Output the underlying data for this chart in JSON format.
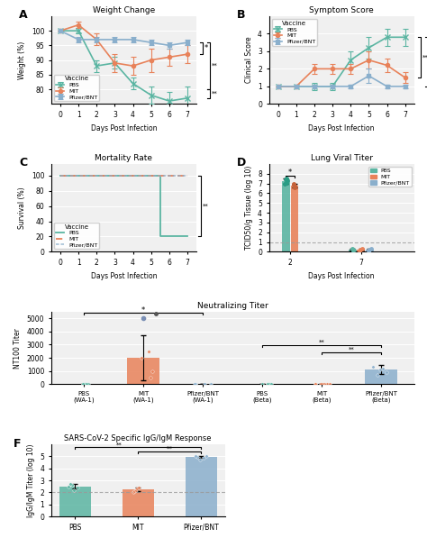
{
  "panel_A": {
    "title": "Weight Change",
    "xlabel": "Days Post Infection",
    "ylabel": "Weight (%)",
    "days": [
      0,
      1,
      2,
      3,
      4,
      5,
      6,
      7
    ],
    "PBS_mean": [
      100,
      100,
      88,
      89,
      82,
      78,
      76,
      77
    ],
    "PBS_err": [
      0,
      1,
      2,
      2,
      2,
      3,
      3,
      4
    ],
    "MIT_mean": [
      100,
      102,
      97,
      89,
      88,
      90,
      91,
      92
    ],
    "MIT_err": [
      0,
      1,
      2,
      3,
      3,
      4,
      3,
      3
    ],
    "Pfizer_mean": [
      100,
      97,
      97,
      97,
      97,
      96,
      95,
      96
    ],
    "Pfizer_err": [
      0,
      1,
      1,
      1,
      1,
      1,
      1,
      1
    ],
    "ylim": [
      75,
      105
    ],
    "yticks": [
      80,
      85,
      90,
      95,
      100
    ]
  },
  "panel_B": {
    "title": "Symptom Score",
    "xlabel": "Days Post Infection",
    "ylabel": "Clinical Score",
    "days": [
      0,
      1,
      2,
      3,
      4,
      5,
      6,
      7
    ],
    "PBS_mean": [
      1,
      1,
      1,
      1,
      2.5,
      3.2,
      3.8,
      3.8
    ],
    "PBS_err": [
      0,
      0,
      0.2,
      0.2,
      0.5,
      0.6,
      0.5,
      0.5
    ],
    "MIT_mean": [
      1,
      1,
      2.0,
      2.0,
      2.0,
      2.5,
      2.2,
      1.5
    ],
    "MIT_err": [
      0,
      0,
      0.3,
      0.3,
      0.3,
      0.5,
      0.4,
      0.3
    ],
    "Pfizer_mean": [
      1,
      1,
      1,
      1,
      1,
      1.6,
      1,
      1
    ],
    "Pfizer_err": [
      0,
      0,
      0,
      0,
      0.1,
      0.4,
      0.1,
      0.1
    ],
    "ylim": [
      0,
      5
    ],
    "yticks": [
      0,
      1,
      2,
      3,
      4
    ]
  },
  "panel_C": {
    "title": "Mortality Rate",
    "xlabel": "Days Post Infection",
    "ylabel": "Survival (%)",
    "ylim": [
      0,
      115
    ],
    "yticks": [
      0,
      20,
      40,
      60,
      80,
      100
    ]
  },
  "panel_D": {
    "title": "Lung Viral Titer",
    "xlabel": "Days Post Infection",
    "ylabel": "TCID50/g Tissue (log 10)",
    "day2_PBS": 7.25,
    "day2_PBS_err": 0.25,
    "day2_MIT": 6.8,
    "day2_MIT_err": 0.2,
    "day7_PBS": 0.25,
    "day7_PBS_err": 0.1,
    "day7_MIT": 0.25,
    "day7_MIT_err": 0.1,
    "day7_Pfizer": 0.25,
    "day7_Pfizer_err": 0.1,
    "day2_PBS_dots": [
      7.0,
      7.1,
      7.4,
      7.5,
      7.3
    ],
    "day2_MIT_dots": [
      6.6,
      6.7,
      6.9,
      7.0,
      6.8
    ],
    "day7_dots_PBS": [
      0.15,
      0.25,
      0.3
    ],
    "day7_dots_MIT": [
      0.15,
      0.25,
      0.3
    ],
    "day7_dots_Pfizer": [
      0.15,
      0.25,
      0.3
    ],
    "ylim": [
      0,
      9
    ],
    "yticks": [
      0,
      1,
      2,
      3,
      4,
      5,
      6,
      7,
      8
    ]
  },
  "panel_E": {
    "title": "Neutralizing Titer",
    "ylabel": "NT100 Titer",
    "categories": [
      "PBS\n(WA-1)",
      "MIT\n(WA-1)",
      "Pfizer/BNT\n(WA-1)",
      "PBS\n(Beta)",
      "MIT\n(Beta)",
      "Pfizer/BNT\n(Beta)"
    ],
    "means": [
      20,
      2000,
      20,
      20,
      20,
      1100
    ],
    "errs": [
      5,
      1700,
      5,
      5,
      5,
      350
    ],
    "dots_PBS_WA1": [
      10,
      15,
      20,
      25,
      30,
      35,
      40
    ],
    "dots_MIT_WA1": [
      500,
      1000,
      2000,
      2500,
      5000
    ],
    "dots_Pfizer_WA1": [
      10,
      15,
      20,
      25,
      30
    ],
    "dots_PBS_Beta": [
      10,
      15,
      20,
      25,
      30,
      35
    ],
    "dots_MIT_Beta": [
      10,
      15,
      20,
      25,
      30,
      35,
      40
    ],
    "dots_Pfizer_Beta": [
      700,
      900,
      1100,
      1200,
      1300
    ],
    "bar_colors": [
      "#5bb5a2",
      "#e8825a",
      "#8aafcc",
      "#5bb5a2",
      "#e8825a",
      "#8aafcc"
    ],
    "ylim": [
      0,
      5500
    ],
    "yticks": [
      0,
      1000,
      2000,
      3000,
      4000,
      5000
    ]
  },
  "panel_F": {
    "title": "SARS-CoV-2 Specific IgG/IgM Response",
    "ylabel": "IgG/IgM Titer (log 10)",
    "categories": [
      "PBS",
      "MIT",
      "Pfizer/BNT"
    ],
    "means": [
      2.5,
      2.25,
      4.95
    ],
    "errs": [
      0.2,
      0.15,
      0.1
    ],
    "dots_PBS": [
      2.2,
      2.4,
      2.5,
      2.6,
      2.7
    ],
    "dots_MIT": [
      2.0,
      2.1,
      2.2,
      2.35,
      2.4
    ],
    "dots_Pfizer": [
      4.7,
      4.85,
      4.95,
      5.0,
      5.05
    ],
    "bar_colors": [
      "#5bb5a2",
      "#e8825a",
      "#8aafcc"
    ],
    "ylim": [
      0,
      6
    ],
    "yticks": [
      0,
      1,
      2,
      3,
      4,
      5
    ]
  },
  "colors": {
    "PBS": "#5bb5a2",
    "MIT": "#e8825a",
    "Pfizer": "#8aafcc"
  },
  "bg": "#f0f0f0"
}
